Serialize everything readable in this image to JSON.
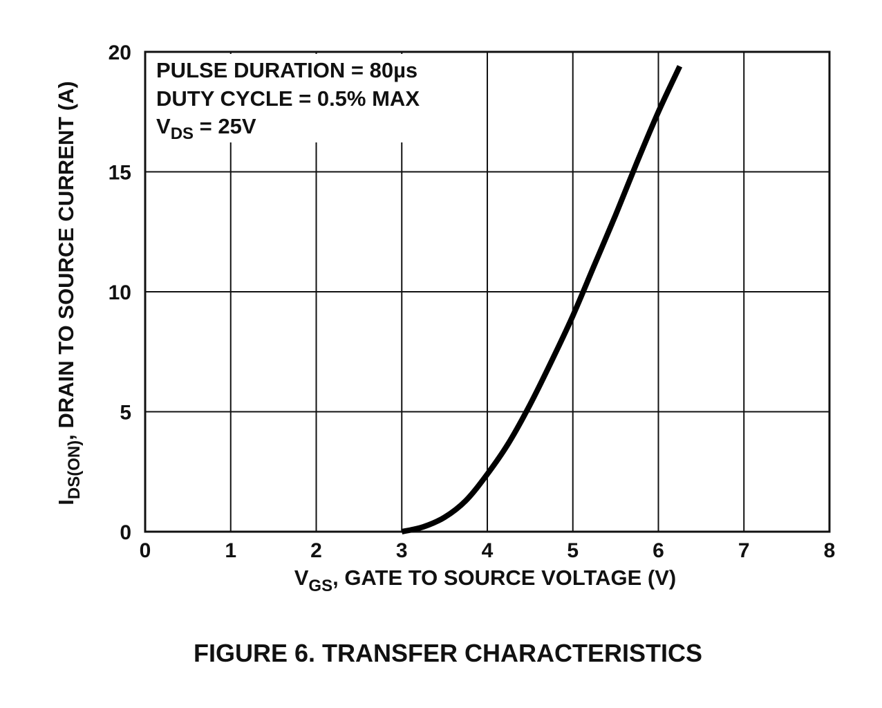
{
  "chart_data": {
    "type": "line",
    "title": "FIGURE 6.  TRANSFER CHARACTERISTICS",
    "xlabel": {
      "main": "V",
      "sub": "GS",
      "rest": ", GATE TO SOURCE VOLTAGE (V)"
    },
    "ylabel": {
      "main": "I",
      "sub": "DS(ON)",
      "rest": ",  DRAIN TO SOURCE CURRENT (A)"
    },
    "xlim": [
      0,
      8
    ],
    "ylim": [
      0,
      20
    ],
    "xticks": [
      "0",
      "1",
      "2",
      "3",
      "4",
      "5",
      "6",
      "7",
      "8"
    ],
    "yticks": [
      "0",
      "5",
      "10",
      "15",
      "20"
    ],
    "grid": true,
    "annotations": [
      {
        "text": "PULSE DURATION = 80µs"
      },
      {
        "text": "DUTY CYCLE = 0.5% MAX"
      },
      {
        "main": "V",
        "sub": "DS",
        "rest": " = 25V"
      }
    ],
    "series": [
      {
        "x": [
          3.0,
          3.25,
          3.5,
          3.75,
          4.0,
          4.25,
          4.5,
          4.75,
          5.0,
          5.25,
          5.5,
          5.75,
          6.0,
          6.25
        ],
        "y": [
          0.0,
          0.2,
          0.6,
          1.3,
          2.4,
          3.7,
          5.3,
          7.1,
          9.0,
          11.1,
          13.2,
          15.4,
          17.5,
          19.4
        ]
      }
    ],
    "colors": {
      "line": "#000000",
      "grid": "#111111"
    }
  }
}
